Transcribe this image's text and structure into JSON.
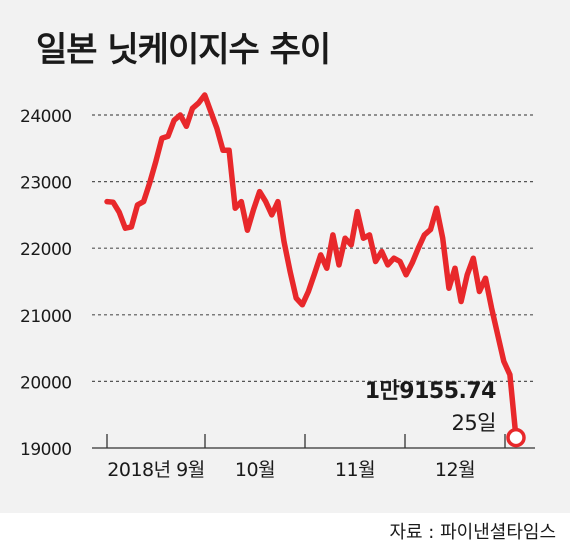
{
  "chart_data": {
    "type": "line",
    "title": "일본 닛케이지수 추이",
    "y_ticks": [
      19000,
      20000,
      21000,
      22000,
      23000,
      24000
    ],
    "x_tick_labels": [
      "2018년 9월",
      "10월",
      "11월",
      "12월"
    ],
    "ylim": [
      19000,
      24300
    ],
    "grid": true,
    "series": [
      {
        "color": "#e8282b",
        "values": [
          22700,
          22690,
          22540,
          22300,
          22320,
          22650,
          22700,
          22980,
          23300,
          23650,
          23680,
          23920,
          24000,
          23830,
          24100,
          24180,
          24300,
          24050,
          23800,
          23470,
          23470,
          22600,
          22700,
          22270,
          22580,
          22850,
          22700,
          22500,
          22700,
          22100,
          21650,
          21250,
          21150,
          21350,
          21620,
          21900,
          21700,
          22200,
          21750,
          22150,
          22050,
          22550,
          22150,
          22200,
          21800,
          21950,
          21750,
          21850,
          21800,
          21600,
          21780,
          22000,
          22200,
          22280,
          22600,
          22150,
          21400,
          21700,
          21200,
          21600,
          21850,
          21350,
          21550,
          21100,
          20700,
          20300,
          20100,
          19155.74
        ]
      }
    ],
    "annotations": {
      "value_label": "1만9155.74",
      "day_label": "25일"
    },
    "source": "자료 : 파이낸셜타임스"
  }
}
